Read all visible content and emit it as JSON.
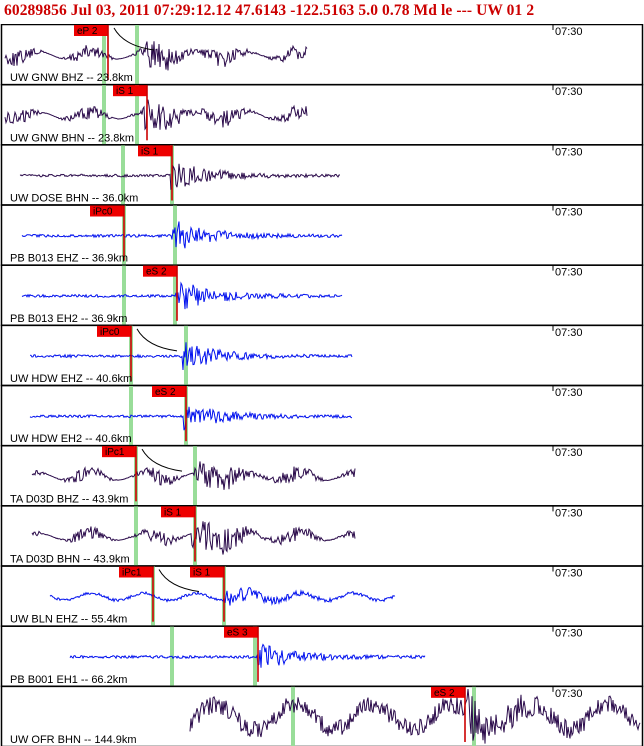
{
  "header": {
    "title": "60289856 Jul 03, 2011 07:29:12.12    47.6143 -122.5163   5.0 0.78 Md le ---  UW 01    2"
  },
  "time_tick_label": "07:30",
  "colors": {
    "dark_trace": "#2a0a4a",
    "blue_trace": "#0010ee",
    "pick_box": "#ee0000",
    "pick_line": "#cc0000",
    "theory_line": "#99dd99",
    "frame": "#000000"
  },
  "panels": [
    {
      "station": "UW GNW BHZ -- 23.8km",
      "color": "dark",
      "picks": [
        {
          "label": "eP 2",
          "arrival": 108,
          "type": "P"
        }
      ],
      "theory": [
        104,
        137
      ],
      "trace": [
        5,
        307
      ],
      "burst": 150,
      "amp": 12,
      "curve": true
    },
    {
      "station": "UW GNW BHN -- 23.8km",
      "color": "dark",
      "picks": [
        {
          "label": "iS 1",
          "arrival": 147,
          "type": "S"
        }
      ],
      "theory": [
        104,
        137
      ],
      "trace": [
        5,
        307
      ],
      "burst": 148,
      "amp": 14,
      "curve": false
    },
    {
      "station": "UW DOSE BHN -- 36.0km",
      "color": "dark",
      "picks": [
        {
          "label": "iS 1",
          "arrival": 172,
          "type": "S"
        }
      ],
      "theory": [
        123,
        172
      ],
      "trace": [
        20,
        340
      ],
      "burst": 175,
      "amp": 16,
      "curve": false
    },
    {
      "station": "PB B013 EHZ -- 36.9km",
      "color": "blue",
      "picks": [
        {
          "label": "iPc0",
          "arrival": 124,
          "type": "P"
        }
      ],
      "theory": [
        124,
        175
      ],
      "trace": [
        22,
        342
      ],
      "burst": 176,
      "amp": 16,
      "curve": false
    },
    {
      "station": "PB B013 EH2 -- 36.9km",
      "color": "blue",
      "picks": [
        {
          "label": "eS 2",
          "arrival": 177,
          "type": "S"
        }
      ],
      "theory": [
        124,
        175
      ],
      "trace": [
        22,
        342
      ],
      "burst": 180,
      "amp": 16,
      "curve": false
    },
    {
      "station": "UW HDW EHZ -- 40.6km",
      "color": "blue",
      "picks": [
        {
          "label": "iPc0",
          "arrival": 131,
          "type": "P"
        }
      ],
      "theory": [
        131,
        186
      ],
      "trace": [
        30,
        352
      ],
      "burst": 187,
      "amp": 14,
      "curve": true
    },
    {
      "station": "UW HDW EH2 -- 40.6km",
      "color": "blue",
      "picks": [
        {
          "label": "eS 2",
          "arrival": 186,
          "type": "S"
        }
      ],
      "theory": [
        131,
        186
      ],
      "trace": [
        30,
        352
      ],
      "burst": 188,
      "amp": 14,
      "curve": false
    },
    {
      "station": "TA D03D BHZ -- 43.9km",
      "color": "dark",
      "picks": [
        {
          "label": "iPc1",
          "arrival": 136,
          "type": "P"
        }
      ],
      "theory": [
        136,
        195
      ],
      "trace": [
        32,
        355
      ],
      "burst": 198,
      "amp": 14,
      "curve": true
    },
    {
      "station": "TA D03D BHN -- 43.9km",
      "color": "dark",
      "picks": [
        {
          "label": "iS 1",
          "arrival": 195,
          "type": "S"
        }
      ],
      "theory": [
        136,
        195
      ],
      "trace": [
        32,
        355
      ],
      "burst": 196,
      "amp": 18,
      "curve": false
    },
    {
      "station": "UW BLN EHZ -- 55.4km",
      "color": "blue",
      "picks": [
        {
          "label": "iPc1",
          "arrival": 153,
          "type": "P"
        },
        {
          "label": "iS 1",
          "arrival": 224,
          "type": "S"
        }
      ],
      "theory": [
        153,
        224
      ],
      "trace": [
        50,
        395
      ],
      "burst": 228,
      "amp": 10,
      "curve": true
    },
    {
      "station": "PB B001 EH1 -- 66.2km",
      "color": "blue",
      "picks": [
        {
          "label": "eS 3",
          "arrival": 258,
          "type": "S"
        }
      ],
      "theory": [
        172,
        255
      ],
      "trace": [
        70,
        425
      ],
      "burst": 262,
      "amp": 14,
      "curve": false
    },
    {
      "station": "UW OFR BHN -- 144.9km",
      "color": "dark",
      "picks": [
        {
          "label": "eS 2",
          "arrival": 465,
          "type": "S"
        }
      ],
      "theory": [
        293,
        474
      ],
      "trace": [
        190,
        640
      ],
      "burst": 470,
      "amp": 20,
      "curve": false
    }
  ]
}
